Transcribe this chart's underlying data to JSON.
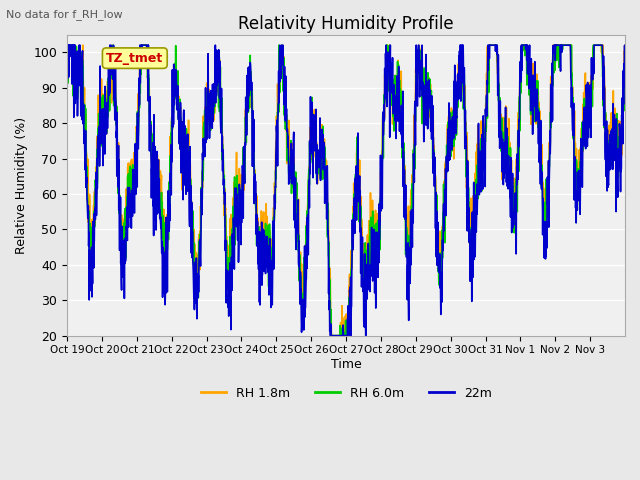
{
  "title": "Relativity Humidity Profile",
  "subtitle": "No data for f_RH_low",
  "xlabel": "Time",
  "ylabel": "Relative Humidity (%)",
  "ylim": [
    20,
    105
  ],
  "yticks": [
    20,
    30,
    40,
    50,
    60,
    70,
    80,
    90,
    100
  ],
  "xtick_labels": [
    "Oct 19",
    "Oct 20",
    "Oct 21",
    "Oct 22",
    "Oct 23",
    "Oct 24",
    "Oct 25",
    "Oct 26",
    "Oct 27",
    "Oct 28",
    "Oct 29",
    "Oct 30",
    "Oct 31",
    "Nov 1",
    "Nov 2",
    "Nov 3"
  ],
  "legend_labels": [
    "RH 1.8m",
    "RH 6.0m",
    "22m"
  ],
  "colors": [
    "#FFA500",
    "#00CC00",
    "#0000CC"
  ],
  "annotation_text": "TZ_tmet",
  "annotation_color": "#CC0000",
  "annotation_bg": "#FFFF99",
  "bg_color": "#E8E8E8",
  "plot_bg": "#F0F0F0",
  "grid_color": "#FFFFFF",
  "n_days": 16,
  "seed": 42
}
